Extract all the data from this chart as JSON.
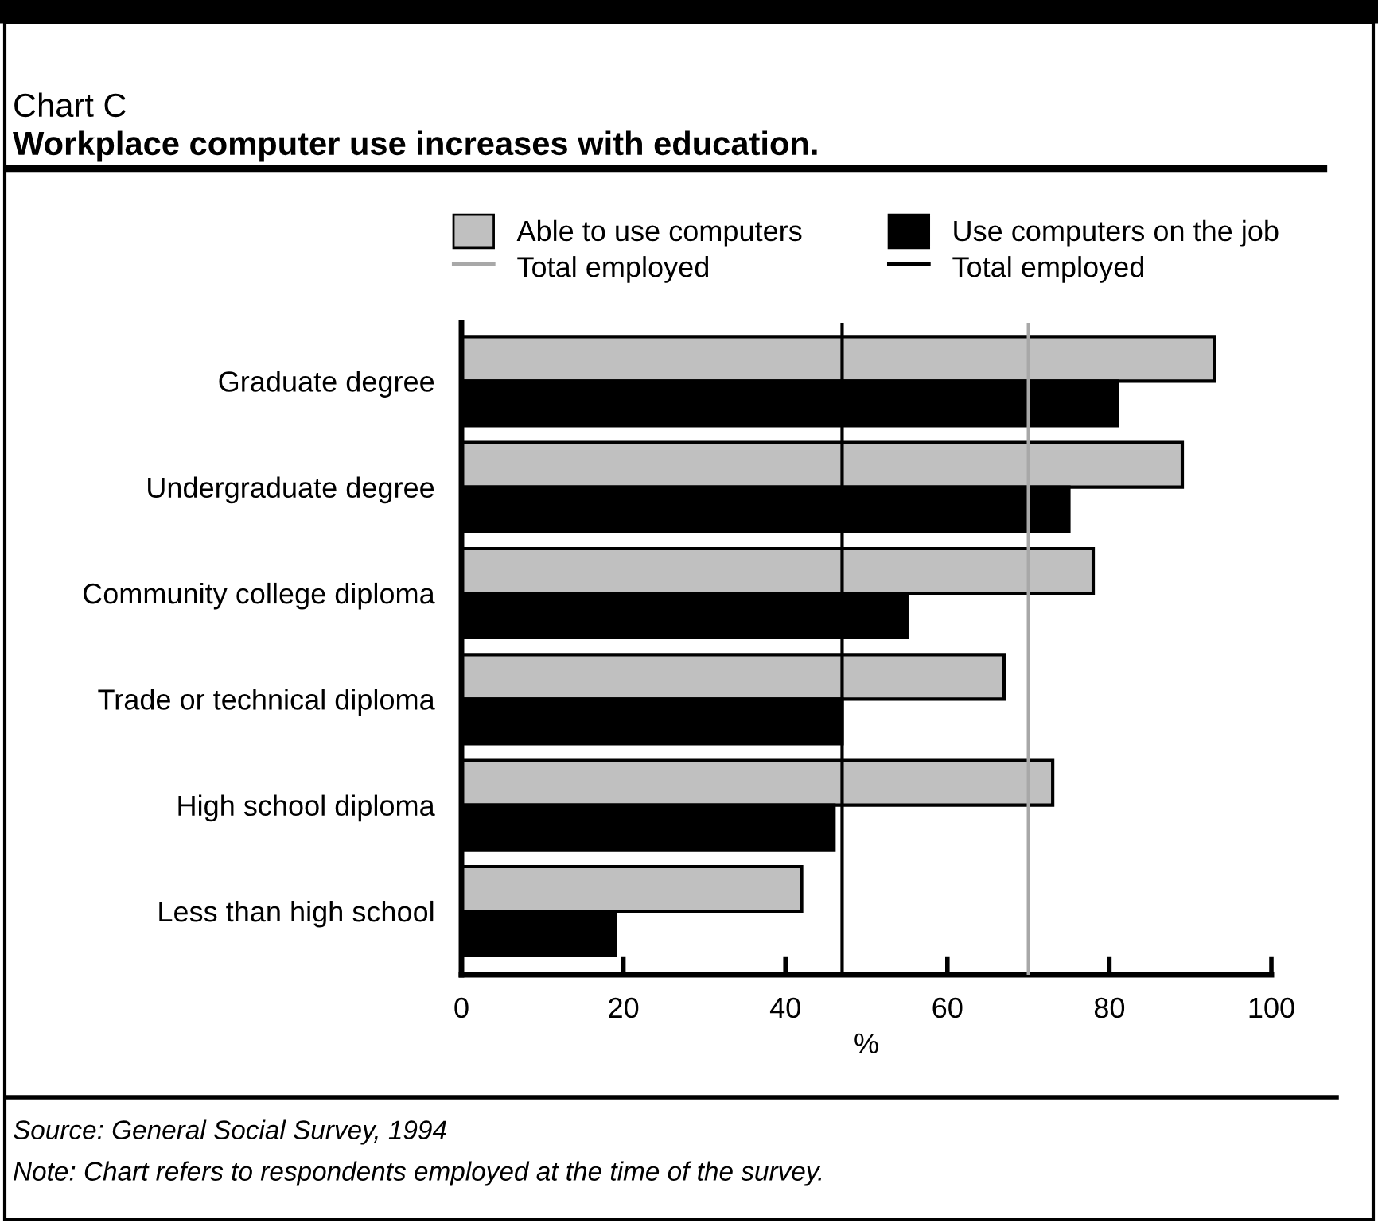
{
  "chart_data": {
    "type": "bar",
    "orientation": "horizontal",
    "title": "Chart C",
    "subtitle": "Workplace computer use increases with education.",
    "categories": [
      "Graduate degree",
      "Undergraduate degree",
      "Community college diploma",
      "Trade or technical diploma",
      "High school diploma",
      "Less than high school"
    ],
    "series": [
      {
        "name": "Able to use computers",
        "color": "#c0c0c0",
        "values": [
          93,
          89,
          78,
          67,
          73,
          42
        ]
      },
      {
        "name": "Use computers on the job",
        "color": "#000000",
        "values": [
          81,
          75,
          55,
          47,
          46,
          19
        ]
      }
    ],
    "ref_lines": [
      {
        "axis": "x",
        "value": 70,
        "label": "Total employed",
        "color": "#a8a8a8"
      },
      {
        "axis": "x",
        "value": 47,
        "label": "Total employed",
        "color": "#000000"
      }
    ],
    "xlim": [
      0,
      100
    ],
    "xticks": [
      0,
      20,
      40,
      60,
      80,
      100
    ],
    "xlabel": "%",
    "legend": "top",
    "grid": false,
    "annotations": [
      "Source: General Social Survey, 1994",
      "Note: Chart refers to respondents employed at the time of the survey."
    ]
  }
}
